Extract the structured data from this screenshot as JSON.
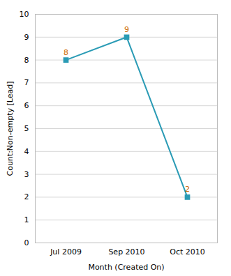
{
  "chart_data": {
    "type": "line",
    "categories": [
      "Jul 2009",
      "Sep 2010",
      "Oct 2010"
    ],
    "values": [
      8,
      9,
      2
    ],
    "color": "#2A9BB5",
    "marker": "square",
    "xlabel": "Month (Created On)",
    "ylabel": "Count:Non-empty [Lead]",
    "ylim": [
      0,
      10
    ],
    "yticks": [
      0,
      1,
      2,
      3,
      4,
      5,
      6,
      7,
      8,
      9,
      10
    ],
    "grid": true,
    "data_labels": true
  }
}
